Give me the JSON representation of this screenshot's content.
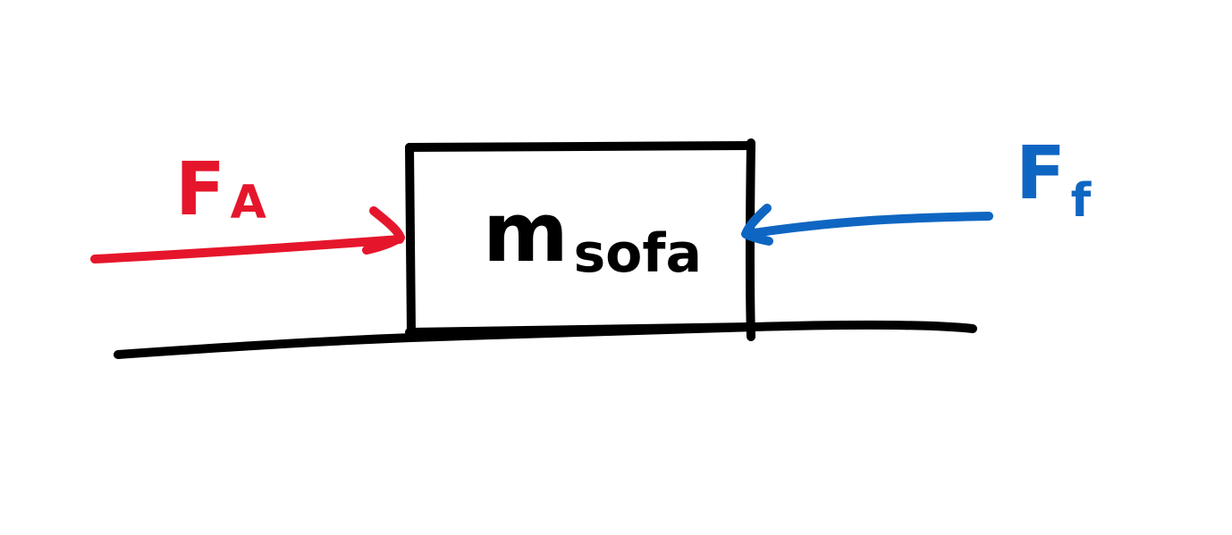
{
  "colors": {
    "ink": "#000000",
    "applied_force": "#e5162b",
    "friction_force": "#0f66c2",
    "background": "#ffffff"
  },
  "applied_force": {
    "symbol": "F",
    "subscript": "A"
  },
  "friction_force": {
    "symbol": "F",
    "subscript": "f"
  },
  "object": {
    "symbol": "m",
    "subscript": "sofa"
  }
}
